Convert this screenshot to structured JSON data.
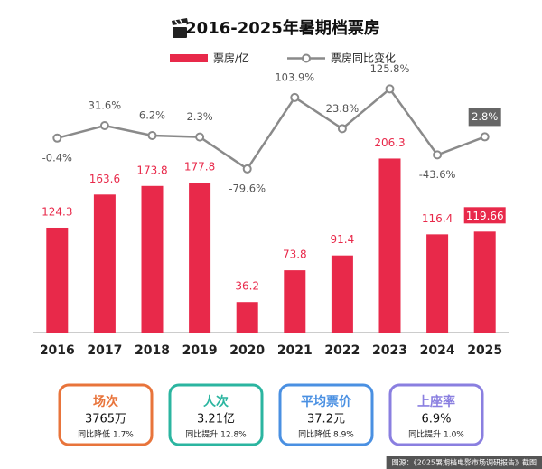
{
  "chart_data": {
    "type": "bar-line",
    "title": "2016-2025年暑期档票房",
    "categories": [
      "2016",
      "2017",
      "2018",
      "2019",
      "2020",
      "2021",
      "2022",
      "2023",
      "2024",
      "2025"
    ],
    "series": [
      {
        "name": "票房/亿",
        "type": "bar",
        "color": "#e8294a",
        "values": [
          124.3,
          163.6,
          173.8,
          177.8,
          36.2,
          73.8,
          91.4,
          206.3,
          116.4,
          119.66
        ]
      },
      {
        "name": "票房同比变化",
        "type": "line",
        "axis": "y2",
        "color": "#8a8a8a",
        "values": [
          -0.4,
          31.6,
          6.2,
          2.3,
          -79.6,
          103.9,
          23.8,
          125.8,
          -43.6,
          2.8
        ],
        "value_labels": [
          "-0.4%",
          "31.6%",
          "6.2%",
          "2.3%",
          "-79.6%",
          "103.9%",
          "23.8%",
          "125.8%",
          "-43.6%",
          "2.8%"
        ]
      }
    ],
    "ylim": [
      0,
      300
    ],
    "y2lim": [
      -500,
      150
    ]
  },
  "cards": [
    {
      "title": "场次",
      "value": "3765万",
      "change": "同比降低 1.7%",
      "color": "#e8743b"
    },
    {
      "title": "人次",
      "value": "3.21亿",
      "change": "同比提升 12.8%",
      "color": "#2bb5a0"
    },
    {
      "title": "平均票价",
      "value": "37.2元",
      "change": "同比降低 8.9%",
      "color": "#4a90e2"
    },
    {
      "title": "上座率",
      "value": "6.9%",
      "change": "同比提升 1.0%",
      "color": "#8a7fe0"
    }
  ],
  "footer": "图源：《2025暑期档电影市场调研报告》截图"
}
